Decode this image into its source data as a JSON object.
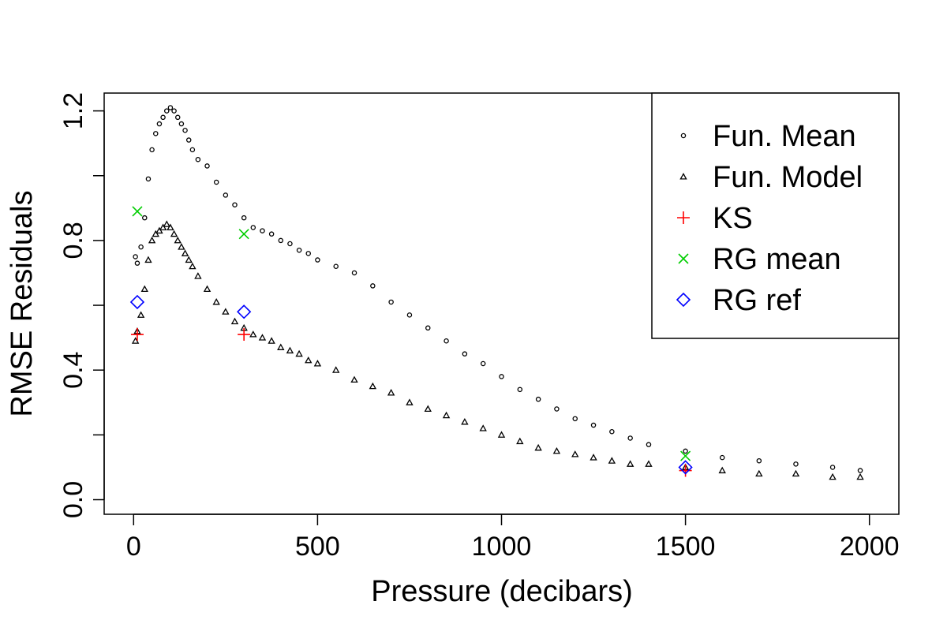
{
  "chart_data": {
    "type": "scatter",
    "title": "",
    "xlabel": "Pressure (decibars)",
    "ylabel": "RMSE Residuals",
    "xlim": [
      -80,
      2080
    ],
    "ylim": [
      -0.045,
      1.255
    ],
    "xticks": [
      0,
      500,
      1000,
      1500,
      2000
    ],
    "xtick_labels": [
      "0",
      "500",
      "1000",
      "1500",
      "2000"
    ],
    "yticks": [
      0.0,
      0.4,
      0.8,
      1.2
    ],
    "ytick_labels": [
      "0.0",
      "0.4",
      "0.8",
      "1.2"
    ],
    "grid": false,
    "legend_position": "top-right",
    "series": [
      {
        "name": "Fun. Mean",
        "marker": "circle",
        "color": "#000000",
        "x": [
          5,
          10,
          20,
          30,
          40,
          50,
          60,
          70,
          80,
          90,
          100,
          110,
          120,
          130,
          140,
          150,
          160,
          175,
          200,
          225,
          250,
          275,
          300,
          325,
          350,
          375,
          400,
          425,
          450,
          475,
          500,
          550,
          600,
          650,
          700,
          750,
          800,
          850,
          900,
          950,
          1000,
          1050,
          1100,
          1150,
          1200,
          1250,
          1300,
          1350,
          1400,
          1500,
          1600,
          1700,
          1800,
          1900,
          1975
        ],
        "y": [
          0.75,
          0.73,
          0.78,
          0.87,
          0.99,
          1.08,
          1.13,
          1.16,
          1.18,
          1.2,
          1.21,
          1.2,
          1.18,
          1.16,
          1.14,
          1.11,
          1.08,
          1.05,
          1.03,
          0.98,
          0.94,
          0.91,
          0.87,
          0.84,
          0.83,
          0.82,
          0.8,
          0.79,
          0.77,
          0.76,
          0.74,
          0.72,
          0.7,
          0.66,
          0.61,
          0.57,
          0.53,
          0.49,
          0.45,
          0.42,
          0.38,
          0.34,
          0.31,
          0.28,
          0.25,
          0.23,
          0.21,
          0.19,
          0.17,
          0.15,
          0.13,
          0.12,
          0.11,
          0.1,
          0.09
        ],
        "note_omit": true
      },
      {
        "name": "Fun. Model",
        "marker": "triangle",
        "color": "#000000",
        "x": [
          5,
          10,
          20,
          30,
          40,
          50,
          60,
          70,
          80,
          90,
          100,
          110,
          120,
          130,
          140,
          150,
          160,
          175,
          200,
          225,
          250,
          275,
          300,
          325,
          350,
          375,
          400,
          425,
          450,
          475,
          500,
          550,
          600,
          650,
          700,
          750,
          800,
          850,
          900,
          950,
          1000,
          1050,
          1100,
          1150,
          1200,
          1250,
          1300,
          1350,
          1400,
          1500,
          1600,
          1700,
          1800,
          1900,
          1975
        ],
        "y": [
          0.49,
          0.52,
          0.57,
          0.65,
          0.74,
          0.8,
          0.82,
          0.83,
          0.84,
          0.85,
          0.84,
          0.82,
          0.8,
          0.78,
          0.76,
          0.74,
          0.72,
          0.69,
          0.65,
          0.61,
          0.58,
          0.55,
          0.53,
          0.51,
          0.5,
          0.49,
          0.47,
          0.46,
          0.45,
          0.43,
          0.42,
          0.4,
          0.37,
          0.35,
          0.33,
          0.3,
          0.28,
          0.26,
          0.24,
          0.22,
          0.2,
          0.18,
          0.16,
          0.15,
          0.14,
          0.13,
          0.12,
          0.11,
          0.11,
          0.1,
          0.09,
          0.08,
          0.08,
          0.07,
          0.07
        ]
      },
      {
        "name": "KS",
        "marker": "plus",
        "color": "#ff0000",
        "x": [
          10,
          300,
          1500
        ],
        "y": [
          0.51,
          0.51,
          0.09
        ]
      },
      {
        "name": "RG mean",
        "marker": "cross",
        "color": "#00cd00",
        "x": [
          10,
          300,
          1500
        ],
        "y": [
          0.89,
          0.82,
          0.135
        ]
      },
      {
        "name": "RG ref",
        "marker": "diamond",
        "color": "#0000ff",
        "x": [
          10,
          300,
          1500
        ],
        "y": [
          0.61,
          0.58,
          0.1
        ]
      }
    ]
  }
}
